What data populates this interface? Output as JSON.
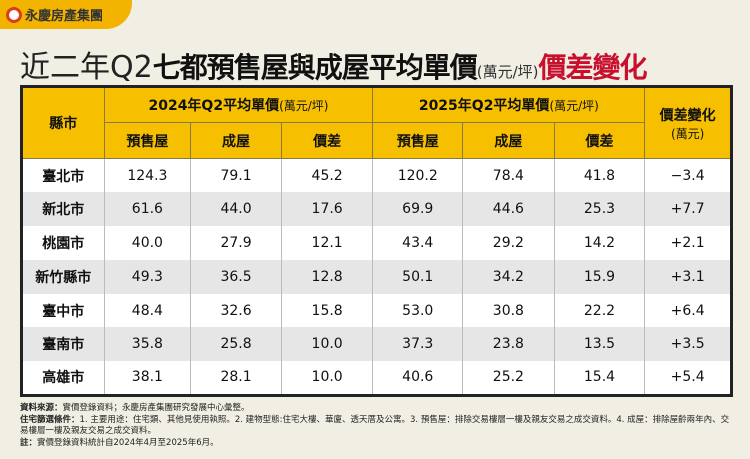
{
  "brand": {
    "name": "永慶房產集團",
    "accent": "#f2b400",
    "mark_color": "#d8401c"
  },
  "title": {
    "part1": "近二年Q2",
    "part2": "七都預售屋與成屋平均單價",
    "unit": "(萬元/坪)",
    "part3": "價差變化",
    "highlight_color": "#c8102e"
  },
  "table": {
    "county_header": "縣市",
    "group2024": {
      "label": "2024年Q2平均單價",
      "unit": "(萬元/坪)"
    },
    "group2025": {
      "label": "2025年Q2平均單價",
      "unit": "(萬元/坪)"
    },
    "sub": [
      "預售屋",
      "成屋",
      "價差"
    ],
    "change_header": "價差變化",
    "change_unit": "(萬元)",
    "rows": [
      [
        "臺北市",
        "124.3",
        "79.1",
        "45.2",
        "120.2",
        "78.4",
        "41.8",
        "−3.4"
      ],
      [
        "新北市",
        "61.6",
        "44.0",
        "17.6",
        "69.9",
        "44.6",
        "25.3",
        "+7.7"
      ],
      [
        "桃園市",
        "40.0",
        "27.9",
        "12.1",
        "43.4",
        "29.2",
        "14.2",
        "+2.1"
      ],
      [
        "新竹縣市",
        "49.3",
        "36.5",
        "12.8",
        "50.1",
        "34.2",
        "15.9",
        "+3.1"
      ],
      [
        "臺中市",
        "48.4",
        "32.6",
        "15.8",
        "53.0",
        "30.8",
        "22.2",
        "+6.4"
      ],
      [
        "臺南市",
        "35.8",
        "25.8",
        "10.0",
        "37.3",
        "23.8",
        "13.5",
        "+3.5"
      ],
      [
        "高雄市",
        "38.1",
        "28.1",
        "10.0",
        "40.6",
        "25.2",
        "15.4",
        "+5.4"
      ]
    ]
  },
  "notes": {
    "source_label": "資料來源：",
    "source": "實價登錄資料；永慶房產集團研究發展中心彙整。",
    "filter_label": "住宅篩選條件：",
    "filter": "1. 主要用途：住宅類、其他見使用執照。2. 建物型態:住宅大樓、華廈、透天厝及公寓。3. 預售屋：排除交易樓層一樓及親友交易之成交資料。4. 成屋：排除屋齡兩年內、交易樓層一樓及親友交易之成交資料。",
    "note_label": "註：",
    "note": "實價登錄資料統計自2024年4月至2025年6月。"
  }
}
